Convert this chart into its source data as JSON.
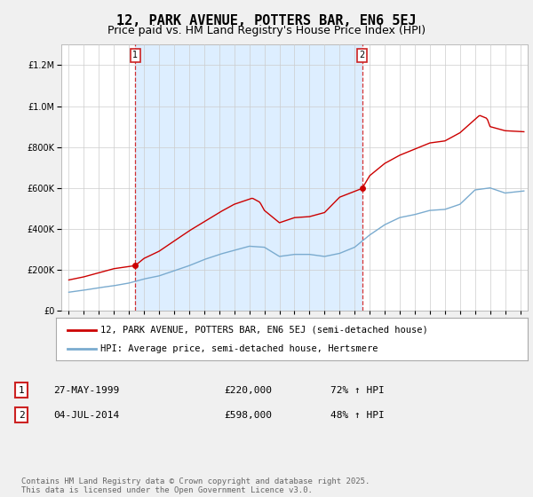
{
  "title": "12, PARK AVENUE, POTTERS BAR, EN6 5EJ",
  "subtitle": "Price paid vs. HM Land Registry's House Price Index (HPI)",
  "legend_label_red": "12, PARK AVENUE, POTTERS BAR, EN6 5EJ (semi-detached house)",
  "legend_label_blue": "HPI: Average price, semi-detached house, Hertsmere",
  "footer": "Contains HM Land Registry data © Crown copyright and database right 2025.\nThis data is licensed under the Open Government Licence v3.0.",
  "sale1_date_x": 1999.41,
  "sale1_price": 220000,
  "sale1_label": "27-MAY-1999",
  "sale1_price_str": "£220,000",
  "sale1_pct": "72% ↑ HPI",
  "sale2_date_x": 2014.5,
  "sale2_price": 598000,
  "sale2_label": "04-JUL-2014",
  "sale2_price_str": "£598,000",
  "sale2_pct": "48% ↑ HPI",
  "ylim": [
    0,
    1300000
  ],
  "xlim_start": 1994.5,
  "xlim_end": 2025.5,
  "bg_color": "#f0f0f0",
  "plot_bg_color": "#ffffff",
  "shade_color": "#ddeeff",
  "red_color": "#cc0000",
  "blue_color": "#7aabcf",
  "grid_color": "#cccccc",
  "title_fontsize": 11,
  "subtitle_fontsize": 9,
  "axis_fontsize": 8,
  "legend_fontsize": 8,
  "annotation_fontsize": 8,
  "hpi_key_years": [
    1995,
    1996,
    1997,
    1998,
    1999,
    2000,
    2001,
    2002,
    2003,
    2004,
    2005,
    2006,
    2007,
    2008,
    2009,
    2010,
    2011,
    2012,
    2013,
    2014,
    2015,
    2016,
    2017,
    2018,
    2019,
    2020,
    2021,
    2022,
    2023,
    2024,
    2025.25
  ],
  "hpi_key_vals": [
    90000,
    100000,
    112000,
    122000,
    135000,
    155000,
    170000,
    195000,
    220000,
    250000,
    275000,
    295000,
    315000,
    310000,
    265000,
    275000,
    275000,
    265000,
    280000,
    310000,
    370000,
    420000,
    455000,
    470000,
    490000,
    495000,
    520000,
    590000,
    600000,
    575000,
    585000
  ],
  "red_key_years": [
    1995,
    1996,
    1997,
    1998,
    1999.41,
    2000,
    2001,
    2002,
    2003,
    2004,
    2005,
    2006,
    2007.2,
    2007.7,
    2008,
    2009,
    2010,
    2011,
    2012,
    2013,
    2014.5,
    2015,
    2016,
    2017,
    2018,
    2019,
    2020,
    2021,
    2022.3,
    2022.8,
    2023,
    2024,
    2025.25
  ],
  "red_key_vals": [
    150000,
    165000,
    185000,
    205000,
    220000,
    255000,
    290000,
    340000,
    390000,
    435000,
    480000,
    520000,
    550000,
    530000,
    490000,
    430000,
    455000,
    460000,
    480000,
    555000,
    598000,
    660000,
    720000,
    760000,
    790000,
    820000,
    830000,
    870000,
    955000,
    940000,
    900000,
    880000,
    875000
  ]
}
